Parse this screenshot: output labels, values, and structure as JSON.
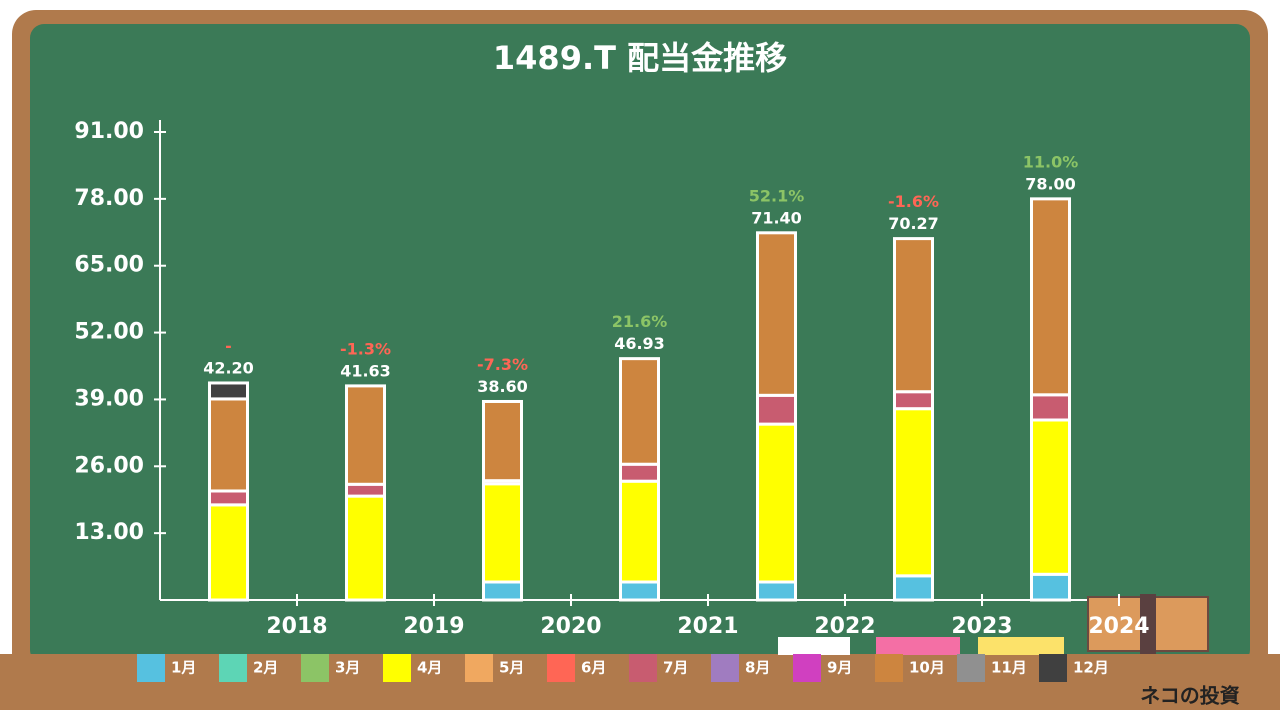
{
  "chart_data": {
    "type": "bar",
    "stacked": true,
    "title": "1489.T 配当金推移",
    "categories": [
      "2018",
      "2019",
      "2020",
      "2021",
      "2022",
      "2023",
      "2024"
    ],
    "series": [
      {
        "name": "1月",
        "color": "#56c1e0",
        "values": [
          null,
          null,
          3.5,
          3.5,
          3.5,
          4.7,
          5.0
        ]
      },
      {
        "name": "2月",
        "color": "#5dd5b5",
        "values": [
          null,
          null,
          null,
          null,
          null,
          null,
          null
        ]
      },
      {
        "name": "3月",
        "color": "#8cc466",
        "values": [
          null,
          null,
          null,
          null,
          null,
          null,
          null
        ]
      },
      {
        "name": "4月",
        "color": "#ffff00",
        "values": [
          18.5,
          20.2,
          19.1,
          19.6,
          30.7,
          32.5,
          30.0
        ]
      },
      {
        "name": "5月",
        "color": "#f0a860",
        "values": [
          null,
          null,
          null,
          null,
          null,
          null,
          null
        ]
      },
      {
        "name": "6月",
        "color": "#ff6655",
        "values": [
          null,
          null,
          null,
          null,
          null,
          null,
          null
        ]
      },
      {
        "name": "7月",
        "color": "#c85c70",
        "values": [
          2.7,
          2.3,
          0.6,
          3.3,
          5.6,
          3.3,
          4.9
        ]
      },
      {
        "name": "8月",
        "color": "#a07cc0",
        "values": [
          null,
          null,
          null,
          null,
          null,
          null,
          null
        ]
      },
      {
        "name": "9月",
        "color": "#d040c0",
        "values": [
          null,
          null,
          null,
          null,
          null,
          null,
          null
        ]
      },
      {
        "name": "10月",
        "color": "#cd853f",
        "values": [
          17.9,
          19.13,
          15.4,
          20.53,
          31.6,
          29.77,
          38.1
        ]
      },
      {
        "name": "11月",
        "color": "#909090",
        "values": [
          null,
          null,
          null,
          null,
          null,
          null,
          null
        ]
      },
      {
        "name": "12月",
        "color": "#404040",
        "values": [
          3.1,
          null,
          null,
          null,
          null,
          null,
          null
        ]
      }
    ],
    "totals": [
      42.2,
      41.63,
      38.6,
      46.93,
      71.4,
      70.27,
      78.0
    ],
    "total_labels": [
      "42.20",
      "41.63",
      "38.60",
      "46.93",
      "71.40",
      "70.27",
      "78.00"
    ],
    "growth": [
      null,
      -1.3,
      -7.3,
      21.6,
      52.1,
      -1.6,
      11.0
    ],
    "growth_labels": [
      "-",
      "-1.3%",
      "-7.3%",
      "21.6%",
      "52.1%",
      "-1.6%",
      "11.0%"
    ],
    "ylim": [
      0,
      91
    ],
    "yticks": [
      {
        "value": 13,
        "label": "13.00"
      },
      {
        "value": 26,
        "label": "26.00"
      },
      {
        "value": 39,
        "label": "39.00"
      },
      {
        "value": 52,
        "label": "52.00"
      },
      {
        "value": 65,
        "label": "65.00"
      },
      {
        "value": 78,
        "label": "78.00"
      },
      {
        "value": 91,
        "label": "91.00"
      }
    ],
    "brand": "ネコの投資"
  }
}
